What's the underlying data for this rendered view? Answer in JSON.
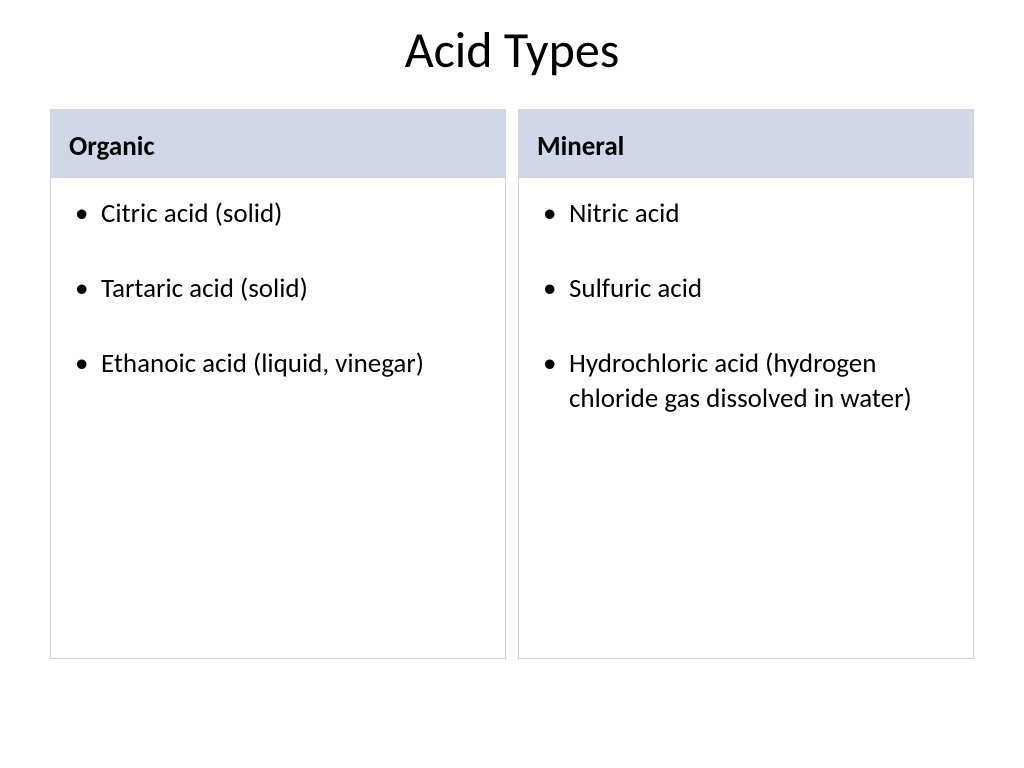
{
  "title": "Acid Types",
  "layout": {
    "type": "two-column-table",
    "header_bg": "#d0d8e8",
    "border_color": "#d0d4dc",
    "body_bg": "#ffffff",
    "title_fontsize": 50,
    "header_fontsize": 27,
    "item_fontsize": 27,
    "text_color": "#000000"
  },
  "columns": [
    {
      "heading": "Organic",
      "items": [
        "Citric acid (solid)",
        "Tartaric acid (solid)",
        "Ethanoic acid (liquid, vinegar)"
      ]
    },
    {
      "heading": "Mineral",
      "items": [
        "Nitric acid",
        "Sulfuric acid",
        "Hydrochloric acid (hydrogen chloride gas dissolved in water)"
      ]
    }
  ]
}
